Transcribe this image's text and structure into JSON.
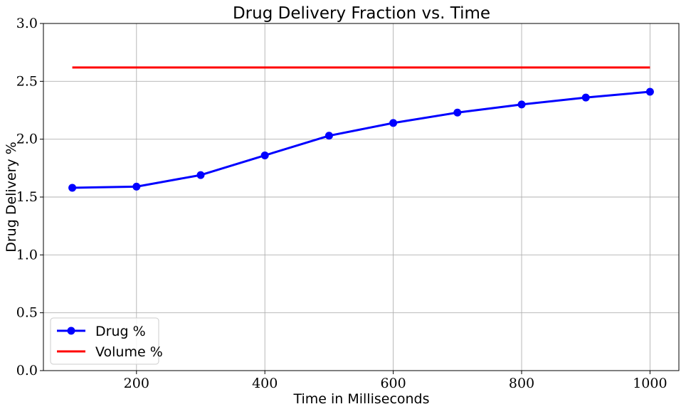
{
  "chart_data": {
    "type": "line",
    "title": "Drug Delivery Fraction vs. Time",
    "xlabel": "Time in Milliseconds",
    "ylabel": "Drug Delivery %",
    "xlim": [
      55,
      1045
    ],
    "ylim": [
      0.0,
      3.0
    ],
    "xticks": [
      200,
      400,
      600,
      800,
      1000
    ],
    "xtick_labels": [
      "200",
      "400",
      "600",
      "800",
      "1000"
    ],
    "yticks": [
      0.0,
      0.5,
      1.0,
      1.5,
      2.0,
      2.5,
      3.0
    ],
    "ytick_labels": [
      "0.0",
      "0.5",
      "1.0",
      "1.5",
      "2.0",
      "2.5",
      "3.0"
    ],
    "grid": true,
    "legend_position": "lower-left",
    "x": [
      100,
      200,
      300,
      400,
      500,
      600,
      700,
      800,
      900,
      1000
    ],
    "series": [
      {
        "name": "Drug %",
        "color": "#0000ff",
        "marker": "circle",
        "values": [
          1.58,
          1.59,
          1.69,
          1.86,
          2.03,
          2.14,
          2.23,
          2.3,
          2.36,
          2.41
        ]
      },
      {
        "name": "Volume %",
        "color": "#ff0000",
        "marker": "none",
        "values": [
          2.62,
          2.62,
          2.62,
          2.62,
          2.62,
          2.62,
          2.62,
          2.62,
          2.62,
          2.62
        ]
      }
    ]
  }
}
